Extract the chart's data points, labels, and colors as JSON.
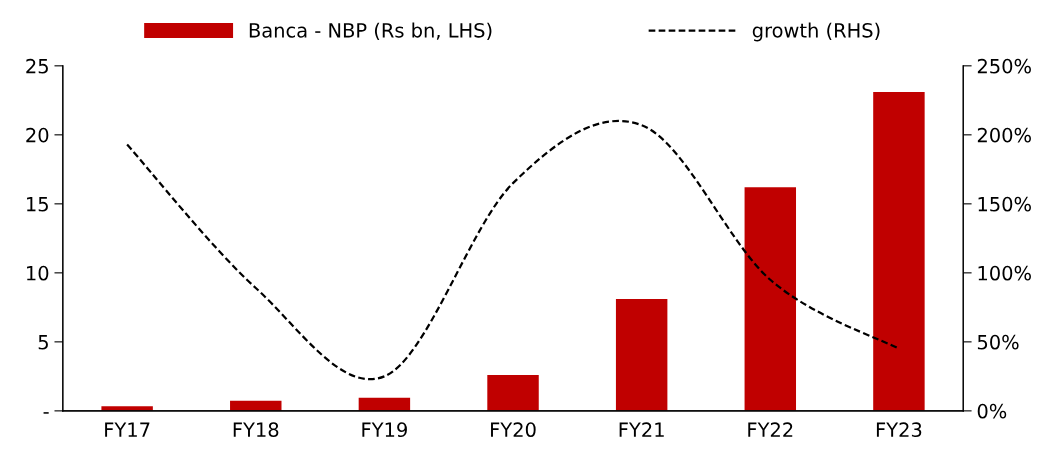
{
  "chart_data": {
    "type": "bar",
    "categories": [
      "FY17",
      "FY18",
      "FY19",
      "FY20",
      "FY21",
      "FY22",
      "FY23"
    ],
    "series": [
      {
        "name": "Banca - NBP (Rs bn, LHS)",
        "color": "#c00000",
        "values": [
          0.33,
          0.73,
          0.95,
          2.6,
          8.1,
          16.2,
          23.1
        ]
      },
      {
        "name": "growth (RHS)",
        "type": "line",
        "axis": "y2",
        "color": "#000000",
        "line_style": "dashed",
        "marker": "none",
        "values": [
          193,
          89,
          25,
          165,
          207,
          95,
          45
        ]
      }
    ],
    "ylim": [
      0,
      25
    ],
    "yticks": [
      {
        "value": 0,
        "label": "-"
      },
      5,
      10,
      15,
      20,
      25
    ],
    "y2lim": [
      0,
      250
    ],
    "y2ticks": [
      {
        "value": 0,
        "label": "0%"
      },
      {
        "value": 50,
        "label": "50%"
      },
      {
        "value": 100,
        "label": "100%"
      },
      {
        "value": 150,
        "label": "150%"
      },
      {
        "value": 200,
        "label": "200%"
      },
      {
        "value": 250,
        "label": "250%"
      }
    ],
    "grid": false,
    "legend": "top"
  }
}
